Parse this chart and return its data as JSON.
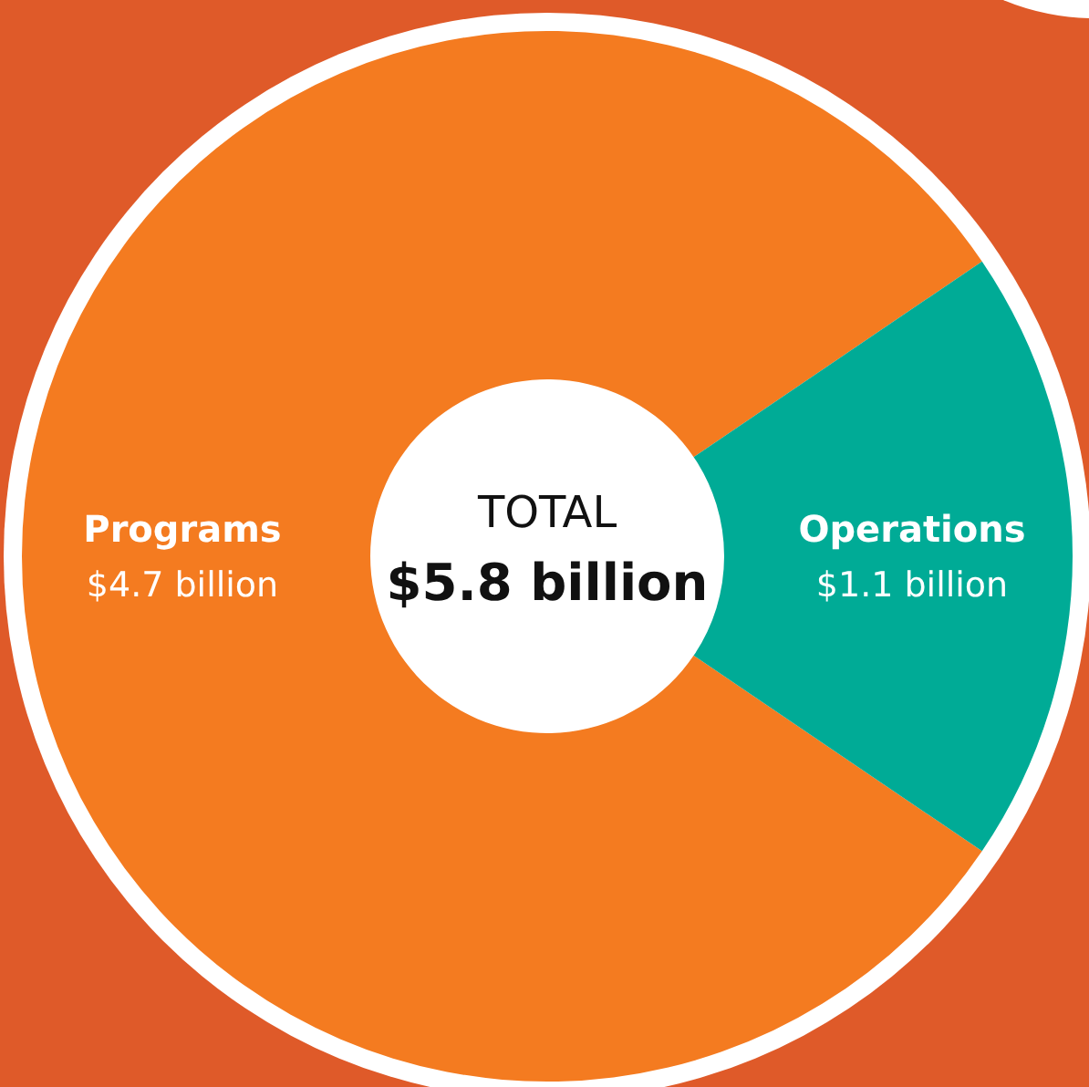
{
  "chart_data": {
    "type": "donut",
    "categories": [
      "Programs",
      "Operations"
    ],
    "values": [
      4.7,
      1.1
    ],
    "colors": [
      "#f47b20",
      "#00ab96"
    ],
    "value_labels": [
      "$4.7 billion",
      "$1.1 billion"
    ],
    "annotations": [
      "TOTAL",
      "$5.8 billion"
    ]
  }
}
